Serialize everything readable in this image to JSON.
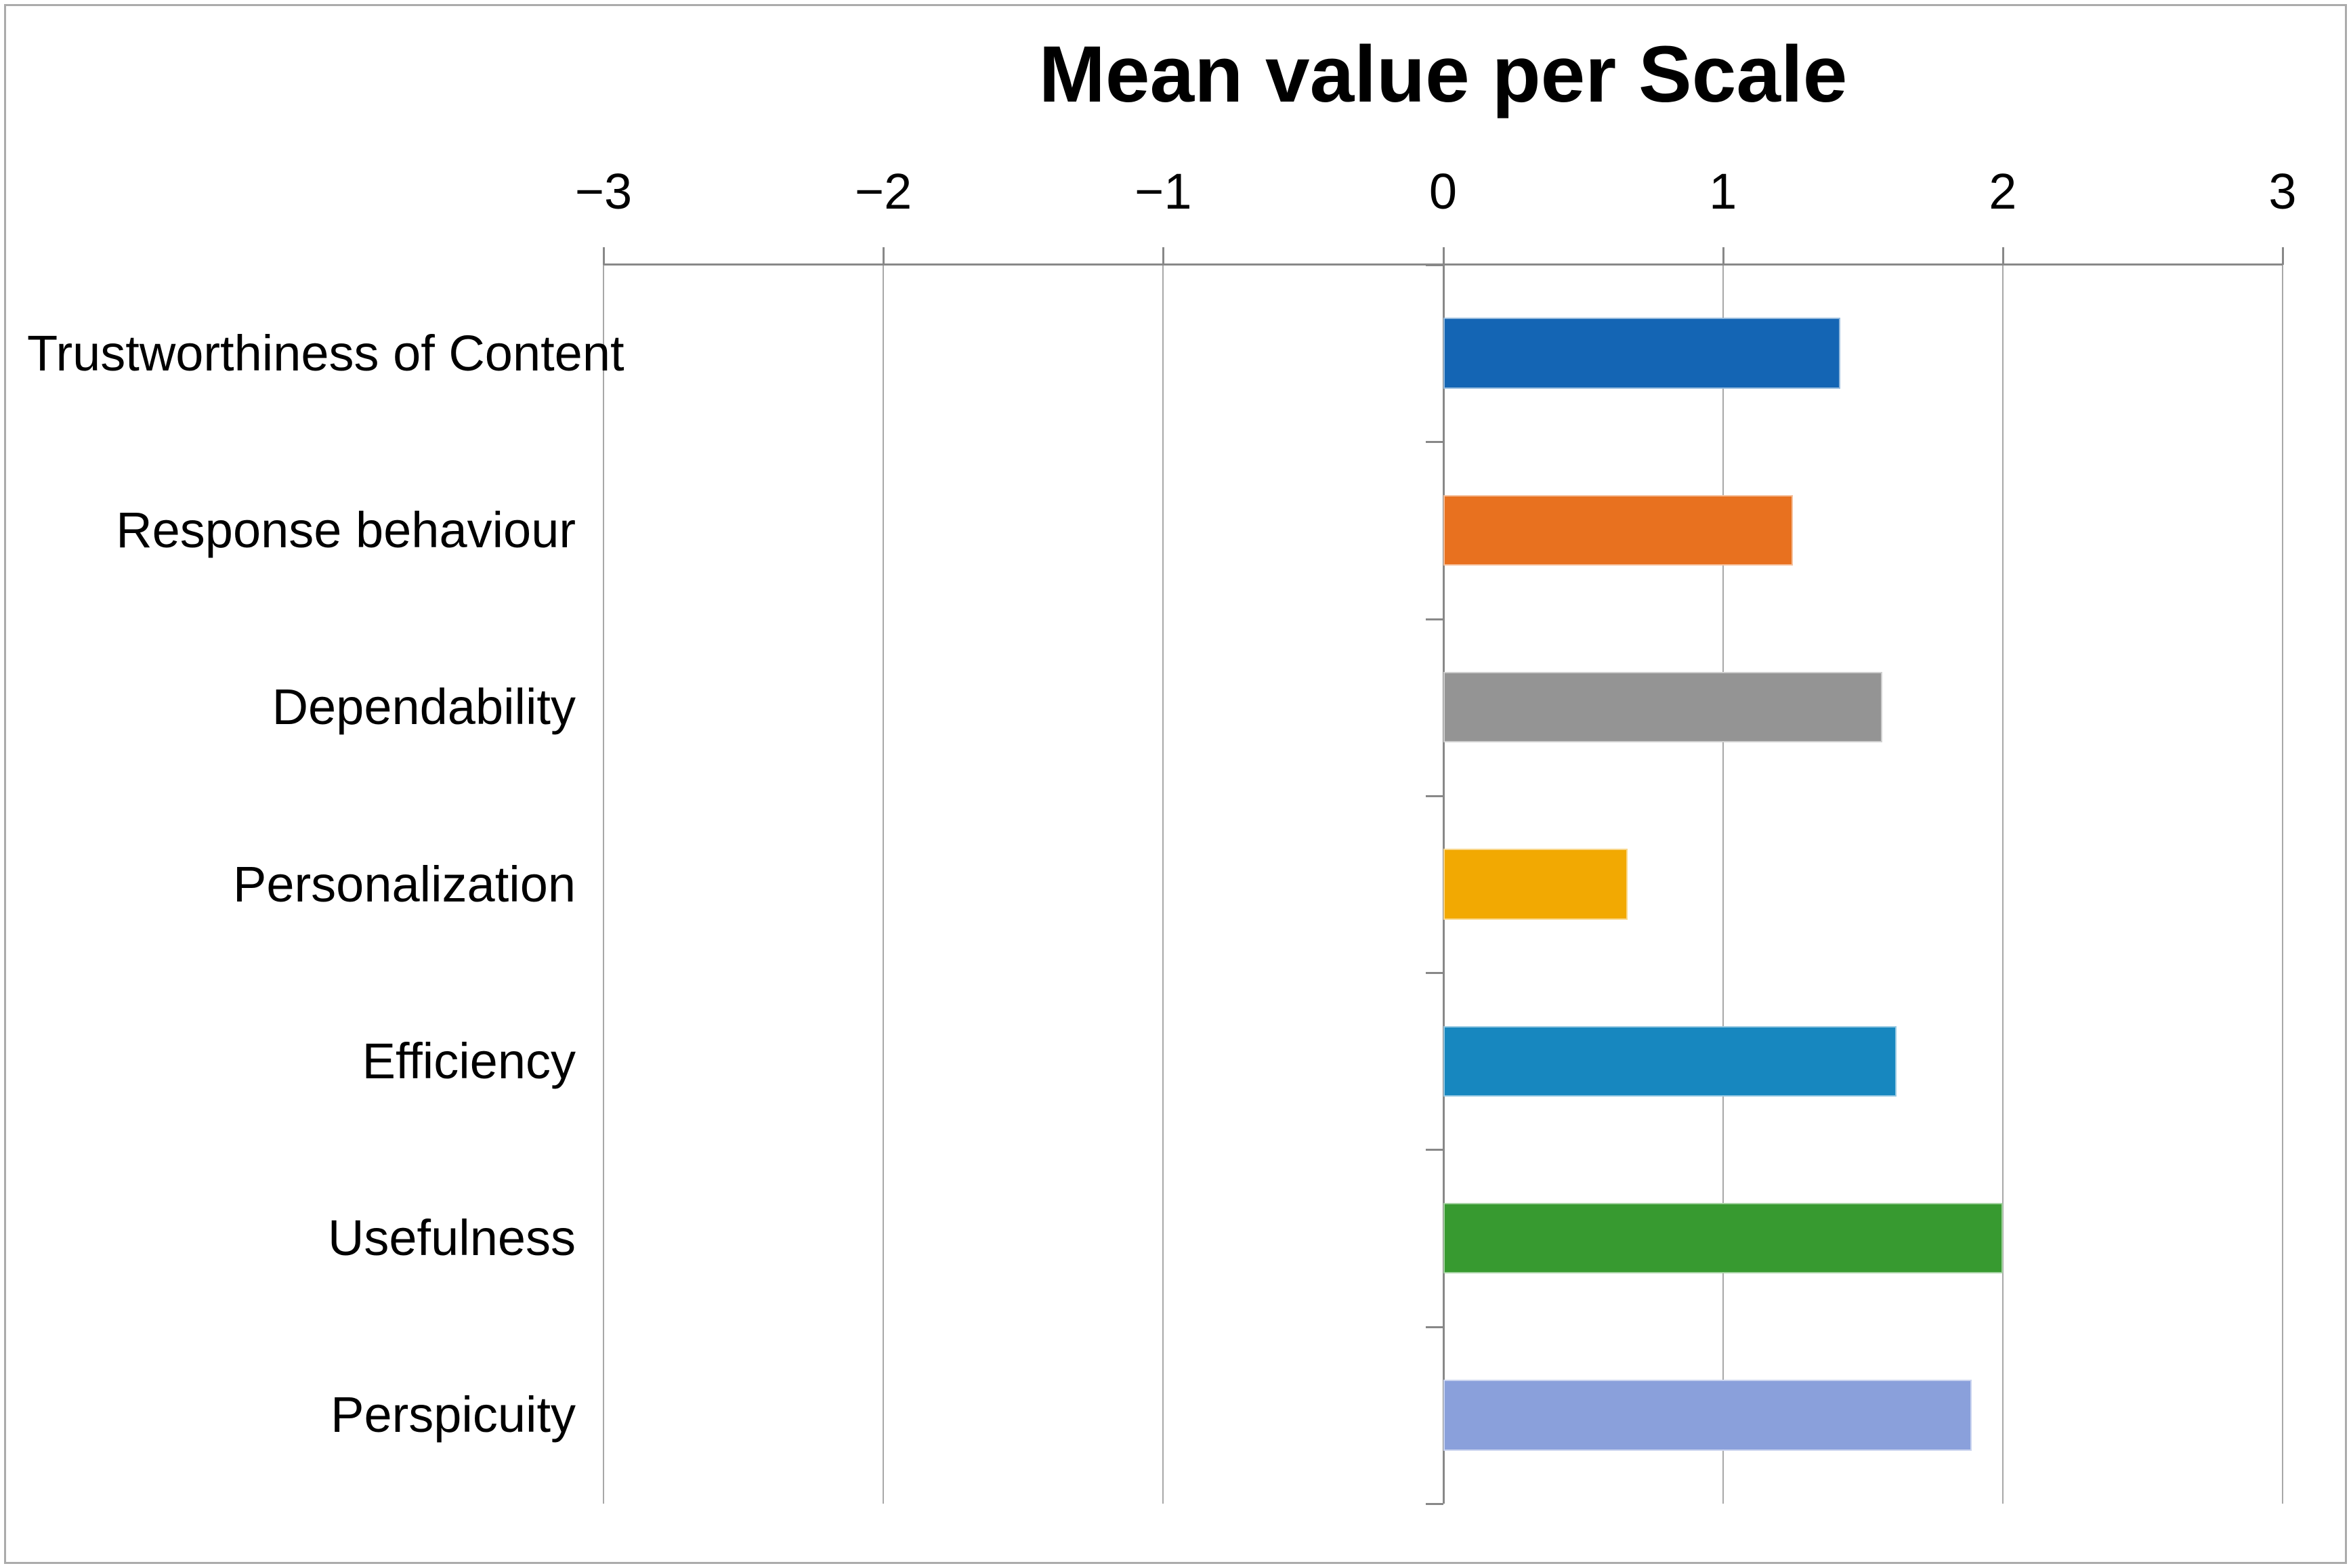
{
  "figure": {
    "title": "Mean value per Scale"
  },
  "chart_data": {
    "type": "bar",
    "orientation": "horizontal",
    "title": "Mean value per Scale",
    "categories": [
      "Trustworthiness of Content",
      "Response behaviour",
      "Dependability",
      "Personalization",
      "Efficiency",
      "Usefulness",
      "Perspicuity"
    ],
    "values": [
      1.42,
      1.25,
      1.57,
      0.66,
      1.62,
      2.0,
      1.89
    ],
    "bar_colors": [
      "#1465b4",
      "#e8711f",
      "#949494",
      "#f2a902",
      "#1787bf",
      "#379a30",
      "#8aa0db"
    ],
    "xlim": [
      -3,
      3
    ],
    "x_ticks": [
      -3,
      -2,
      -1,
      0,
      1,
      2,
      3
    ],
    "x_tick_labels": [
      "−3",
      "−2",
      "−1",
      "0",
      "1",
      "2",
      "3"
    ],
    "xlabel": "",
    "ylabel": "",
    "axis_labels_position": "top",
    "gridlines": "vertical-major",
    "baseline": 0,
    "legend": "none"
  },
  "style_colors": {
    "background": "#ffffff",
    "gridline": "#a8a8a8",
    "axis": "#888888",
    "text": "#000000",
    "figure_border": "#ababab"
  }
}
